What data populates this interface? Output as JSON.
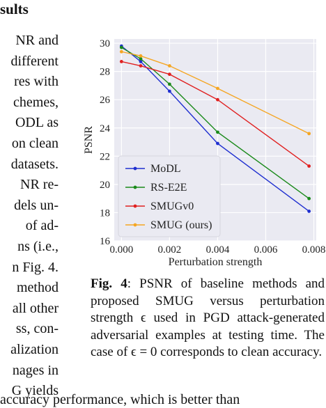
{
  "left_text": {
    "heading": "sults",
    "lines": [
      "NR and",
      "different",
      "res with",
      "chemes,",
      "ODL as",
      "on clean",
      "datasets.",
      "NR re-",
      "dels un-",
      "of ad-",
      "ns (i.e.,",
      "n Fig. 4.",
      "method",
      "all other",
      "ss, con-",
      "alization",
      "nages in",
      "G yields"
    ],
    "bottom_line": "accuracy performance, which is better than"
  },
  "figure": {
    "caption_label": "Fig. 4",
    "caption_text": ": PSNR of baseline methods and proposed SMUG versus perturbation strength ϵ used in PGD attack-generated adversarial examples at testing time. The case of ϵ = 0 corresponds to clean accuracy."
  },
  "chart_data": {
    "type": "line",
    "xlabel": "Perturbation strength",
    "ylabel": "PSNR",
    "xlim": [
      -0.0003,
      0.0081
    ],
    "ylim": [
      16,
      30.3
    ],
    "xticks": [
      "0.000",
      "0.002",
      "0.004",
      "0.006",
      "0.008"
    ],
    "yticks": [
      "16",
      "18",
      "20",
      "22",
      "24",
      "26",
      "28",
      "30"
    ],
    "grid": true,
    "legend_position": "lower-left",
    "x": [
      0.0,
      0.0008,
      0.002,
      0.004,
      0.0078
    ],
    "series": [
      {
        "name": "MoDL",
        "color": "#1f2fd0",
        "values": [
          29.8,
          28.7,
          26.6,
          22.9,
          18.1
        ]
      },
      {
        "name": "RS-E2E",
        "color": "#1a8a1a",
        "values": [
          29.7,
          28.9,
          27.1,
          23.7,
          19.0
        ]
      },
      {
        "name": "SMUGv0",
        "color": "#e02020",
        "values": [
          28.7,
          28.4,
          27.8,
          26.0,
          21.3
        ]
      },
      {
        "name": "SMUG (ours)",
        "color": "#f5a623",
        "values": [
          29.4,
          29.1,
          28.4,
          26.8,
          23.6
        ]
      }
    ]
  }
}
